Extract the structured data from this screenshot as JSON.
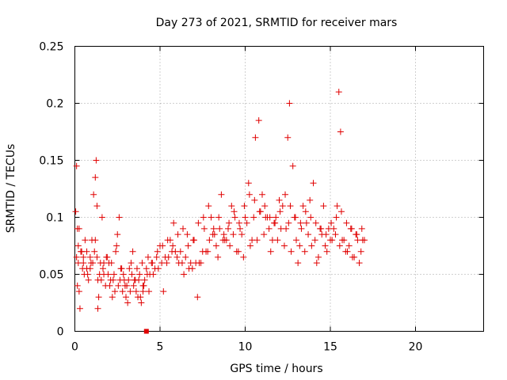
{
  "chart_data": {
    "type": "scatter",
    "title": "Day 273 of 2021, SRMTID for receiver mars",
    "xlabel": "GPS time / hours",
    "ylabel": "SRMTID / TECUs",
    "xlim": [
      0,
      24
    ],
    "ylim": [
      0,
      0.25
    ],
    "xticks": [
      0,
      5,
      10,
      15,
      20
    ],
    "xtick_labels": [
      "0",
      "5",
      "10",
      "15",
      "20"
    ],
    "yticks": [
      0,
      0.05,
      0.1,
      0.15,
      0.2,
      0.25
    ],
    "ytick_labels": [
      "0",
      "0.05",
      "0.1",
      "0.15",
      "0.2",
      "0.25"
    ],
    "grid": true,
    "legend": "none",
    "marker_color": "#e00000",
    "series": [
      {
        "name": "SRMTID",
        "marker": "plus",
        "x": [
          0.05,
          0.1,
          0.15,
          0.2,
          0.25,
          0.3,
          0.4,
          0.5,
          0.6,
          0.7,
          0.8,
          0.9,
          1.0,
          1.1,
          1.2,
          1.25,
          1.3,
          1.35,
          1.4,
          1.5,
          1.6,
          1.7,
          1.8,
          1.9,
          2.0,
          2.1,
          2.2,
          2.3,
          2.4,
          2.5,
          2.6,
          2.7,
          2.8,
          2.9,
          3.0,
          3.1,
          3.2,
          3.3,
          3.4,
          3.5,
          3.6,
          3.7,
          3.8,
          3.9,
          4.0,
          4.1,
          4.2,
          4.3,
          4.5,
          4.6,
          4.8,
          5.0,
          5.2,
          5.4,
          5.6,
          5.8,
          6.0,
          6.2,
          6.4,
          6.6,
          6.8,
          7.0,
          7.2,
          7.4,
          7.6,
          7.8,
          8.0,
          8.2,
          8.4,
          8.6,
          8.8,
          9.0,
          9.2,
          9.4,
          9.6,
          9.8,
          10.0,
          10.2,
          10.4,
          10.6,
          10.8,
          11.0,
          11.2,
          11.4,
          11.6,
          11.8,
          12.0,
          12.2,
          12.4,
          12.5,
          12.6,
          12.8,
          13.0,
          13.2,
          13.4,
          13.6,
          13.8,
          14.0,
          14.2,
          14.4,
          14.6,
          14.8,
          15.0,
          15.2,
          15.4,
          15.5,
          15.6,
          15.8,
          16.0,
          16.2,
          16.4,
          16.6,
          16.8,
          17.0,
          0.1,
          0.2,
          0.35,
          0.5,
          0.7,
          0.9,
          1.15,
          1.3,
          1.45,
          1.7,
          2.05,
          2.35,
          2.65,
          2.95,
          3.25,
          3.55,
          3.85,
          4.05,
          4.35,
          4.7,
          5.1,
          5.5,
          5.9,
          6.3,
          6.7,
          7.1,
          7.5,
          7.9,
          8.3,
          8.7,
          9.1,
          9.5,
          9.9,
          10.3,
          10.7,
          11.1,
          11.5,
          11.9,
          12.3,
          12.7,
          13.1,
          13.5,
          13.9,
          14.3,
          14.7,
          15.1,
          15.55,
          15.9,
          16.3,
          16.7,
          0.15,
          0.45,
          0.75,
          1.05,
          1.35,
          1.65,
          1.95,
          2.25,
          2.55,
          2.85,
          3.15,
          3.45,
          3.75,
          4.0,
          4.4,
          4.9,
          5.3,
          5.7,
          6.1,
          6.5,
          6.9,
          7.3,
          7.7,
          8.1,
          8.5,
          8.9,
          9.3,
          9.7,
          10.1,
          10.5,
          10.9,
          11.3,
          11.7,
          12.1,
          12.55,
          12.9,
          13.3,
          13.7,
          14.1,
          14.5,
          14.9,
          15.3,
          15.7,
          16.1,
          16.5,
          16.9,
          0.25,
          0.55,
          0.95,
          1.2,
          1.55,
          1.85,
          2.15,
          2.45,
          2.75,
          3.05,
          3.35,
          3.65,
          3.95,
          4.25,
          4.55,
          4.85,
          5.15,
          5.45,
          5.75,
          6.05,
          6.35,
          6.65,
          6.95,
          7.25,
          7.55,
          7.85,
          8.15,
          8.45,
          8.75,
          9.05,
          9.35,
          9.65,
          9.95,
          10.25,
          10.55,
          10.85,
          11.15,
          11.45,
          11.75,
          12.05,
          12.35,
          12.65,
          12.95,
          13.25,
          13.55,
          13.85,
          14.15,
          14.45,
          14.75,
          15.05,
          15.35,
          15.65,
          15.95,
          16.25,
          16.55,
          16.85
        ],
        "y": [
          0.105,
          0.145,
          0.09,
          0.06,
          0.035,
          0.02,
          0.07,
          0.065,
          0.08,
          0.055,
          0.045,
          0.065,
          0.08,
          0.12,
          0.135,
          0.15,
          0.11,
          0.02,
          0.03,
          0.06,
          0.1,
          0.05,
          0.04,
          0.065,
          0.06,
          0.045,
          0.03,
          0.05,
          0.07,
          0.085,
          0.1,
          0.055,
          0.035,
          0.045,
          0.03,
          0.025,
          0.055,
          0.06,
          0.07,
          0.045,
          0.035,
          0.03,
          0.05,
          0.025,
          0.04,
          0.045,
          0.055,
          0.065,
          0.06,
          0.05,
          0.065,
          0.075,
          0.035,
          0.06,
          0.08,
          0.095,
          0.065,
          0.07,
          0.05,
          0.085,
          0.06,
          0.08,
          0.03,
          0.06,
          0.09,
          0.07,
          0.1,
          0.085,
          0.065,
          0.12,
          0.08,
          0.09,
          0.11,
          0.1,
          0.07,
          0.085,
          0.1,
          0.13,
          0.08,
          0.17,
          0.185,
          0.12,
          0.1,
          0.09,
          0.08,
          0.1,
          0.115,
          0.11,
          0.09,
          0.17,
          0.2,
          0.145,
          0.08,
          0.075,
          0.11,
          0.095,
          0.115,
          0.13,
          0.06,
          0.09,
          0.11,
          0.07,
          0.08,
          0.09,
          0.11,
          0.21,
          0.175,
          0.08,
          0.07,
          0.09,
          0.065,
          0.08,
          0.07,
          0.08,
          0.065,
          0.075,
          0.07,
          0.06,
          0.07,
          0.055,
          0.07,
          0.065,
          0.05,
          0.06,
          0.04,
          0.035,
          0.045,
          0.04,
          0.035,
          0.045,
          0.03,
          0.04,
          0.035,
          0.055,
          0.06,
          0.065,
          0.07,
          0.06,
          0.055,
          0.06,
          0.07,
          0.08,
          0.075,
          0.08,
          0.075,
          0.07,
          0.065,
          0.075,
          0.08,
          0.085,
          0.07,
          0.08,
          0.075,
          0.07,
          0.06,
          0.07,
          0.075,
          0.065,
          0.075,
          0.08,
          0.075,
          0.07,
          0.065,
          0.06,
          0.04,
          0.055,
          0.05,
          0.06,
          0.045,
          0.055,
          0.05,
          0.045,
          0.04,
          0.05,
          0.045,
          0.04,
          0.045,
          0.035,
          0.05,
          0.055,
          0.065,
          0.07,
          0.06,
          0.065,
          0.055,
          0.06,
          0.07,
          0.085,
          0.09,
          0.08,
          0.085,
          0.09,
          0.095,
          0.1,
          0.105,
          0.1,
          0.095,
          0.09,
          0.095,
          0.1,
          0.09,
          0.085,
          0.08,
          0.085,
          0.09,
          0.085,
          0.08,
          0.075,
          0.085,
          0.08,
          0.09,
          0.05,
          0.06,
          0.08,
          0.045,
          0.065,
          0.06,
          0.075,
          0.055,
          0.04,
          0.05,
          0.055,
          0.06,
          0.05,
          0.06,
          0.07,
          0.075,
          0.08,
          0.075,
          0.085,
          0.09,
          0.075,
          0.08,
          0.095,
          0.1,
          0.11,
          0.09,
          0.1,
          0.085,
          0.095,
          0.105,
          0.095,
          0.11,
          0.12,
          0.115,
          0.105,
          0.11,
          0.1,
          0.095,
          0.105,
          0.12,
          0.11,
          0.1,
          0.095,
          0.105,
          0.1,
          0.095,
          0.09,
          0.085,
          0.095,
          0.1,
          0.105,
          0.095,
          0.09,
          0.085,
          0.09
        ]
      },
      {
        "name": "marker",
        "marker": "square",
        "x": [
          4.2
        ],
        "y": [
          0
        ]
      }
    ]
  }
}
